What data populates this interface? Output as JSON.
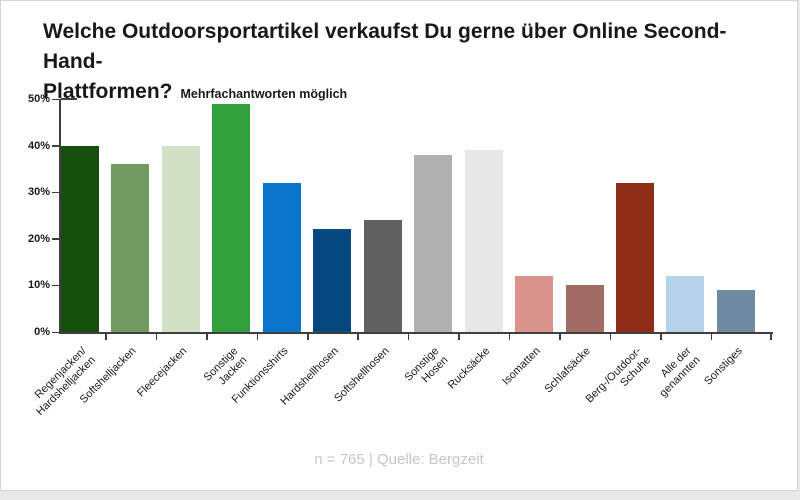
{
  "chart_data": {
    "type": "bar",
    "title": "Welche Outdoorsportartikel verkaufst Du gerne über Online Second-Hand-\nPlattformen?",
    "subtitle": "Mehrfachantworten möglich",
    "categories": [
      "Regenjacken/\nHardshelljacken",
      "Softshelljacken",
      "Fleecejacken",
      "Sonstige Jacken",
      "Funktionsshirts",
      "Hardshellhosen",
      "Softshellhosen",
      "Sonstige Hosen",
      "Rucksäcke",
      "Isomatten",
      "Schlafsäcke",
      "Berg-/Outdoor-Schuhe",
      "Alle der genannten",
      "Sonstiges"
    ],
    "values": [
      40,
      36,
      40,
      49,
      32,
      22,
      24,
      38,
      39,
      12,
      10,
      32,
      12,
      9
    ],
    "colors": [
      "#164f0d",
      "#6f9a64",
      "#d2e0c6",
      "#319f3c",
      "#0b74cb",
      "#03487f",
      "#616161",
      "#b0b0b0",
      "#e7e7e7",
      "#d9938a",
      "#a06c63",
      "#8e2c15",
      "#b4d2e9",
      "#6c8ba3"
    ],
    "xlabel": "",
    "ylabel": "",
    "y_ticks": [
      "0%",
      "10%",
      "20%",
      "30%",
      "40%",
      "50%"
    ],
    "ylim": [
      0,
      50
    ],
    "grid": false,
    "legend": false,
    "footer": "n = 765 | Quelle: Bergzeit",
    "axis_color": "#3f3f3f"
  }
}
